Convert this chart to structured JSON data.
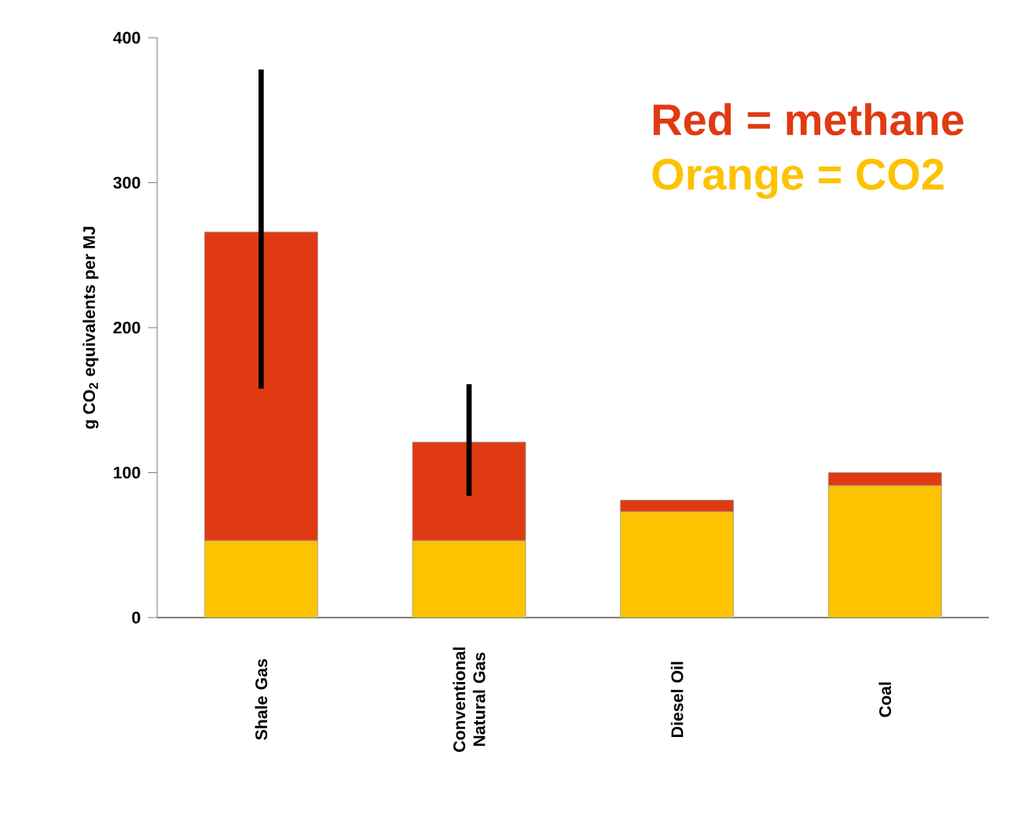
{
  "chart_data": {
    "type": "bar",
    "stacked": true,
    "ylabel": "g CO$_{2}$ equivalents per MJ",
    "categories": [
      "Shale Gas",
      "Conventional Natural Gas",
      "Diesel Oil",
      "Coal"
    ],
    "series": [
      {
        "name": "Orange = CO2",
        "color": "#fdc200",
        "values": [
          53,
          53,
          73,
          91
        ]
      },
      {
        "name": "Red = methane",
        "color": "#e03a12",
        "values": [
          213,
          68,
          8,
          9
        ],
        "errors": [
          [
            158,
            378
          ],
          [
            84,
            161
          ],
          null,
          null
        ]
      }
    ],
    "ylim": [
      0,
      400
    ],
    "yticks": [
      0,
      100,
      200,
      300,
      400
    ],
    "legend": "top right"
  }
}
